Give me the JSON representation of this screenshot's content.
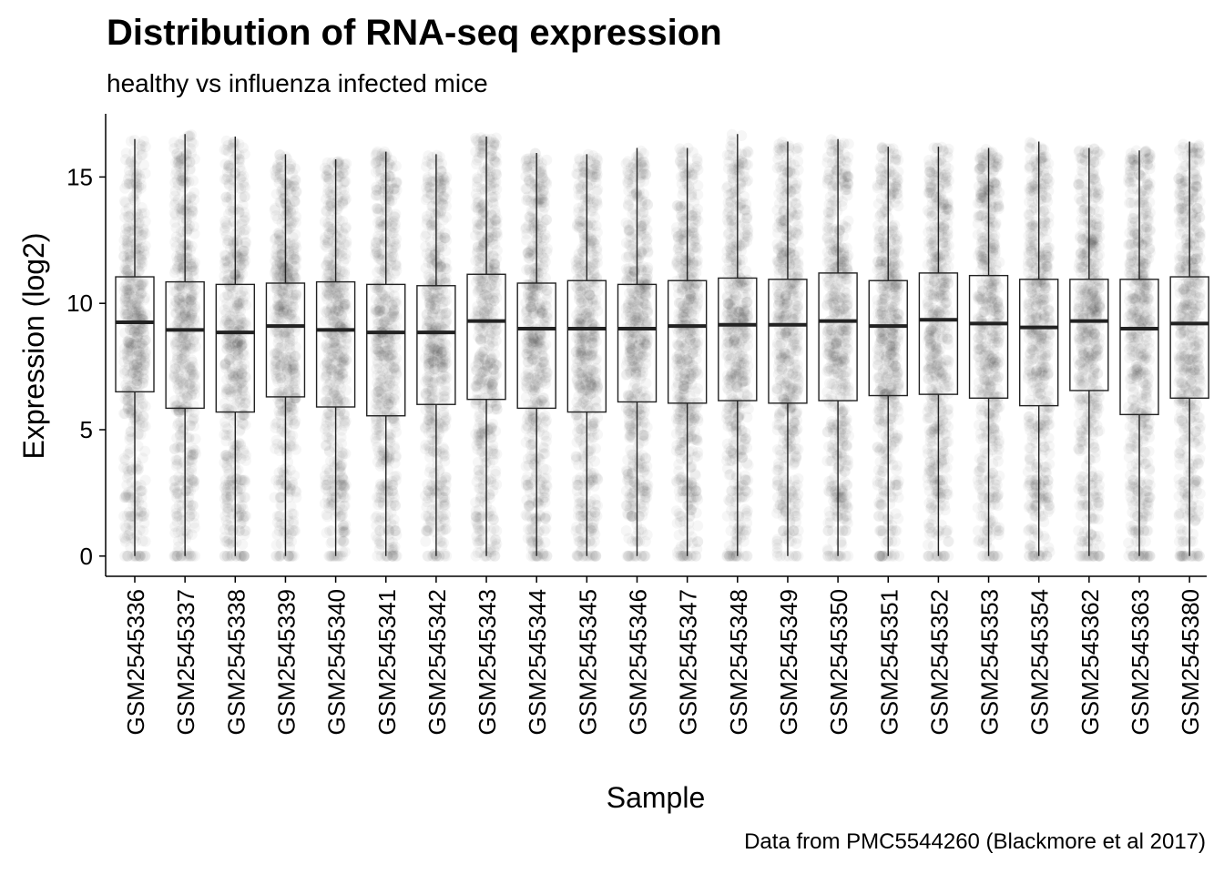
{
  "chart_data": {
    "type": "boxplot",
    "title": "Distribution of RNA-seq expression",
    "subtitle": "healthy vs influenza infected mice",
    "caption": "Data from PMC5544260 (Blackmore et al 2017)",
    "xlabel": "Sample",
    "ylabel": "Expression (log2)",
    "ylim": [
      -0.8,
      17.5
    ],
    "yticks": [
      0,
      5,
      10,
      15
    ],
    "grid": false,
    "legend": "none",
    "points_overlay": "jittered semi-transparent raw values",
    "categories": [
      "GSM2545336",
      "GSM2545337",
      "GSM2545338",
      "GSM2545339",
      "GSM2545340",
      "GSM2545341",
      "GSM2545342",
      "GSM2545343",
      "GSM2545344",
      "GSM2545345",
      "GSM2545346",
      "GSM2545347",
      "GSM2545348",
      "GSM2545349",
      "GSM2545350",
      "GSM2545351",
      "GSM2545352",
      "GSM2545353",
      "GSM2545354",
      "GSM2545362",
      "GSM2545363",
      "GSM2545380"
    ],
    "series": [
      {
        "min": [
          0,
          0,
          0,
          0,
          0,
          0,
          0,
          0,
          0,
          0,
          0,
          0,
          0,
          0,
          0,
          0,
          0,
          0,
          0,
          0,
          0,
          0
        ],
        "q1": [
          6.5,
          5.85,
          5.7,
          6.3,
          5.9,
          5.55,
          6.0,
          6.2,
          5.85,
          5.7,
          6.1,
          6.05,
          6.15,
          6.05,
          6.15,
          6.35,
          6.4,
          6.25,
          5.95,
          6.55,
          5.6,
          6.25
        ],
        "median": [
          9.25,
          8.95,
          8.85,
          9.1,
          8.95,
          8.85,
          8.85,
          9.3,
          9.0,
          9.0,
          9.0,
          9.1,
          9.15,
          9.15,
          9.3,
          9.1,
          9.35,
          9.2,
          9.05,
          9.3,
          9.0,
          9.2
        ],
        "q3": [
          11.05,
          10.85,
          10.75,
          10.8,
          10.85,
          10.75,
          10.7,
          11.15,
          10.8,
          10.9,
          10.75,
          10.9,
          11.0,
          10.95,
          11.2,
          10.9,
          11.2,
          11.1,
          10.95,
          10.95,
          10.95,
          11.05
        ],
        "max": [
          16.5,
          16.7,
          16.6,
          15.9,
          15.7,
          16.0,
          15.9,
          16.6,
          15.95,
          15.9,
          16.15,
          16.15,
          16.7,
          16.4,
          16.5,
          16.2,
          16.2,
          16.15,
          16.4,
          16.15,
          16.05,
          16.4
        ]
      }
    ]
  }
}
